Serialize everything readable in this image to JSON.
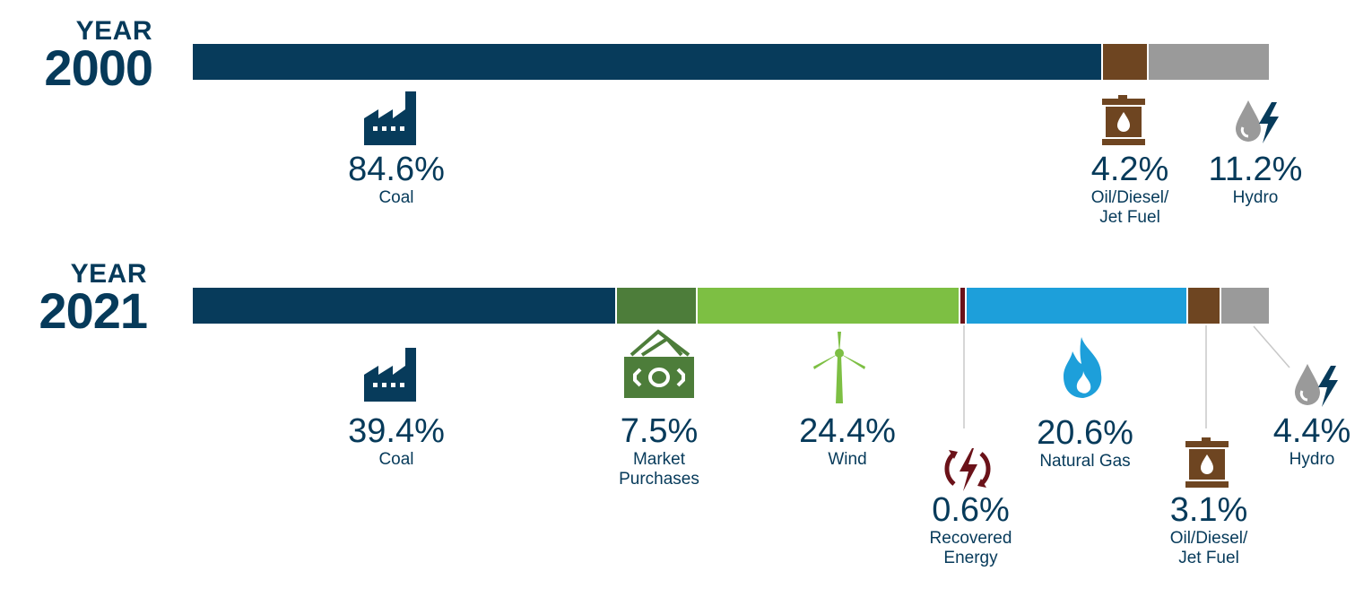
{
  "colors": {
    "coal": "#073b5b",
    "market": "#4d7d3a",
    "wind": "#7dbf43",
    "recovered": "#6b1219",
    "gas": "#1d9fda",
    "oil": "#6e4521",
    "hydro": "#9a9a9a",
    "text": "#063a5a"
  },
  "chart_data": [
    {
      "type": "bar",
      "year_word": "YEAR",
      "year": "2000",
      "series": [
        {
          "key": "coal",
          "name": "Coal",
          "value": 84.6,
          "value_label": "84.6%",
          "icon": "factory-icon"
        },
        {
          "key": "oil",
          "name": "Oil/Diesel/\nJet Fuel",
          "value": 4.2,
          "value_label": "4.2%",
          "icon": "oil-barrel-icon"
        },
        {
          "key": "hydro",
          "name": "Hydro",
          "value": 11.2,
          "value_label": "11.2%",
          "icon": "hydro-drop-bolt-icon"
        }
      ]
    },
    {
      "type": "bar",
      "year_word": "YEAR",
      "year": "2021",
      "series": [
        {
          "key": "coal",
          "name": "Coal",
          "value": 39.4,
          "value_label": "39.4%",
          "icon": "factory-icon"
        },
        {
          "key": "market",
          "name": "Market\nPurchases",
          "value": 7.5,
          "value_label": "7.5%",
          "icon": "money-bills-icon"
        },
        {
          "key": "wind",
          "name": "Wind",
          "value": 24.4,
          "value_label": "24.4%",
          "icon": "wind-turbine-icon"
        },
        {
          "key": "recovered",
          "name": "Recovered\nEnergy",
          "value": 0.6,
          "value_label": "0.6%",
          "icon": "recovered-energy-icon"
        },
        {
          "key": "gas",
          "name": "Natural Gas",
          "value": 20.6,
          "value_label": "20.6%",
          "icon": "flame-icon"
        },
        {
          "key": "oil",
          "name": "Oil/Diesel/\nJet Fuel",
          "value": 3.1,
          "value_label": "3.1%",
          "icon": "oil-barrel-icon"
        },
        {
          "key": "hydro",
          "name": "Hydro",
          "value": 4.4,
          "value_label": "4.4%",
          "icon": "hydro-drop-bolt-icon"
        }
      ]
    }
  ]
}
